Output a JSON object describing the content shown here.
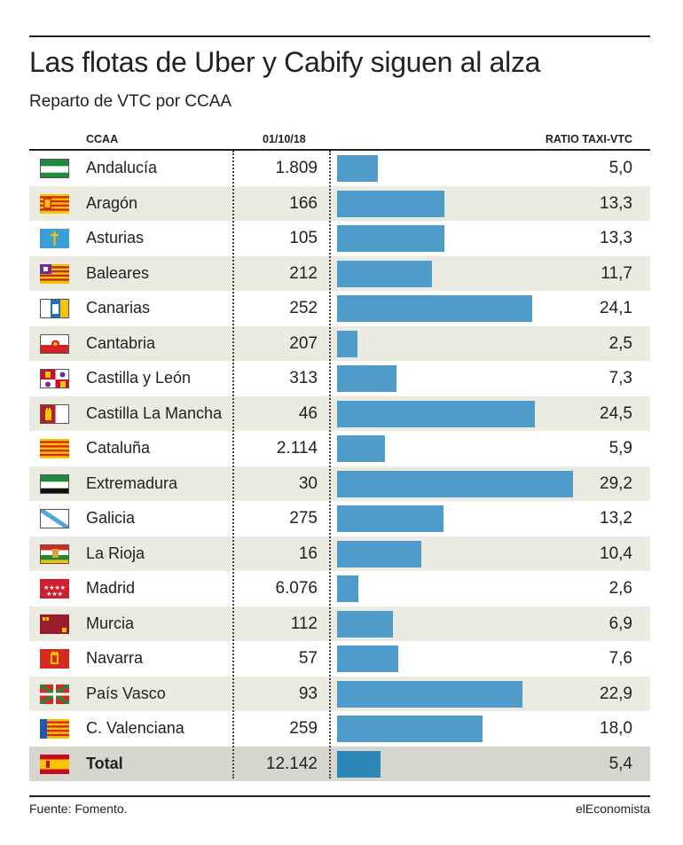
{
  "title": "Las flotas de Uber y Cabify siguen al alza",
  "subtitle": "Reparto de VTC por CCAA",
  "headers": {
    "region": "CCAA",
    "fleet": "01/10/18",
    "ratio": "RATIO TAXI-VTC"
  },
  "footer": {
    "source": "Fuente: Fomento.",
    "brand": "elEconomista"
  },
  "colors": {
    "bar": "#4f9bc9",
    "total_bar": "#2b88b7",
    "row_alt": "#ecebe1",
    "row_total": "#d6d6cf"
  },
  "chart_data": {
    "type": "bar",
    "orientation": "horizontal",
    "title": "Las flotas de Uber y Cabify siguen al alza",
    "subtitle": "Reparto de VTC por CCAA",
    "xlim": [
      0,
      30
    ],
    "grid": false,
    "rows": [
      {
        "region": "Andalucía",
        "fleet": "1.809",
        "ratio_label": "5,0",
        "ratio": 5.0,
        "flag": "andalucia-flag-icon"
      },
      {
        "region": "Aragón",
        "fleet": "166",
        "ratio_label": "13,3",
        "ratio": 13.3,
        "flag": "aragon-flag-icon"
      },
      {
        "region": "Asturias",
        "fleet": "105",
        "ratio_label": "13,3",
        "ratio": 13.3,
        "flag": "asturias-flag-icon"
      },
      {
        "region": "Baleares",
        "fleet": "212",
        "ratio_label": "11,7",
        "ratio": 11.7,
        "flag": "baleares-flag-icon"
      },
      {
        "region": "Canarias",
        "fleet": "252",
        "ratio_label": "24,1",
        "ratio": 24.1,
        "flag": "canarias-flag-icon"
      },
      {
        "region": "Cantabria",
        "fleet": "207",
        "ratio_label": "2,5",
        "ratio": 2.5,
        "flag": "cantabria-flag-icon"
      },
      {
        "region": "Castilla y León",
        "fleet": "313",
        "ratio_label": "7,3",
        "ratio": 7.3,
        "flag": "castilla-leon-flag-icon"
      },
      {
        "region": "Castilla La Mancha",
        "fleet": "46",
        "ratio_label": "24,5",
        "ratio": 24.5,
        "flag": "castilla-la-mancha-flag-icon"
      },
      {
        "region": "Cataluña",
        "fleet": "2.114",
        "ratio_label": "5,9",
        "ratio": 5.9,
        "flag": "cataluna-flag-icon"
      },
      {
        "region": "Extremadura",
        "fleet": "30",
        "ratio_label": "29,2",
        "ratio": 29.2,
        "flag": "extremadura-flag-icon"
      },
      {
        "region": "Galicia",
        "fleet": "275",
        "ratio_label": "13,2",
        "ratio": 13.2,
        "flag": "galicia-flag-icon"
      },
      {
        "region": "La Rioja",
        "fleet": "16",
        "ratio_label": "10,4",
        "ratio": 10.4,
        "flag": "la-rioja-flag-icon"
      },
      {
        "region": "Madrid",
        "fleet": "6.076",
        "ratio_label": "2,6",
        "ratio": 2.6,
        "flag": "madrid-flag-icon"
      },
      {
        "region": "Murcia",
        "fleet": "112",
        "ratio_label": "6,9",
        "ratio": 6.9,
        "flag": "murcia-flag-icon"
      },
      {
        "region": "Navarra",
        "fleet": "57",
        "ratio_label": "7,6",
        "ratio": 7.6,
        "flag": "navarra-flag-icon"
      },
      {
        "region": "País Vasco",
        "fleet": "93",
        "ratio_label": "22,9",
        "ratio": 22.9,
        "flag": "pais-vasco-flag-icon"
      },
      {
        "region": "C. Valenciana",
        "fleet": "259",
        "ratio_label": "18,0",
        "ratio": 18.0,
        "flag": "valenciana-flag-icon"
      }
    ],
    "total": {
      "region": "Total",
      "fleet": "12.142",
      "ratio_label": "5,4",
      "ratio": 5.4,
      "flag": "spain-flag-icon"
    }
  }
}
